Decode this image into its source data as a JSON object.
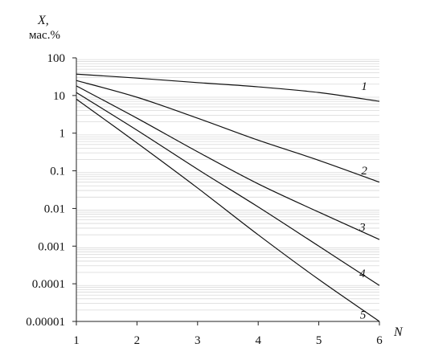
{
  "chart_data": {
    "type": "line",
    "ylabel_symbol": "X,",
    "ylabel_unit": "мас.%",
    "xlabel": "N",
    "xlim": [
      1,
      6
    ],
    "ylim": [
      1e-05,
      100
    ],
    "yscale": "log",
    "grid": "horizontal minor lines",
    "x_ticks": [
      "1",
      "2",
      "3",
      "4",
      "5",
      "6"
    ],
    "y_ticks": [
      "100",
      "10",
      "1",
      "0.1",
      "0.01",
      "0.001",
      "0.0001",
      "0.00001"
    ],
    "series": [
      {
        "name": "1",
        "x": [
          1,
          2,
          3,
          4,
          5,
          6
        ],
        "y": [
          37,
          29,
          22,
          17,
          12,
          7
        ]
      },
      {
        "name": "2",
        "x": [
          1,
          2,
          3,
          4,
          5,
          6
        ],
        "y": [
          25,
          9,
          2.5,
          0.65,
          0.19,
          0.05
        ]
      },
      {
        "name": "3",
        "x": [
          1,
          2,
          3,
          4,
          5,
          6
        ],
        "y": [
          18,
          2.5,
          0.32,
          0.045,
          0.008,
          0.0015
        ]
      },
      {
        "name": "4",
        "x": [
          1,
          2,
          3,
          4,
          5,
          6
        ],
        "y": [
          12,
          1.2,
          0.11,
          0.011,
          0.001,
          9e-05
        ]
      },
      {
        "name": "5",
        "x": [
          1,
          2,
          3,
          4,
          5,
          6
        ],
        "y": [
          8,
          0.55,
          0.035,
          0.002,
          0.00013,
          1e-05
        ]
      }
    ]
  }
}
